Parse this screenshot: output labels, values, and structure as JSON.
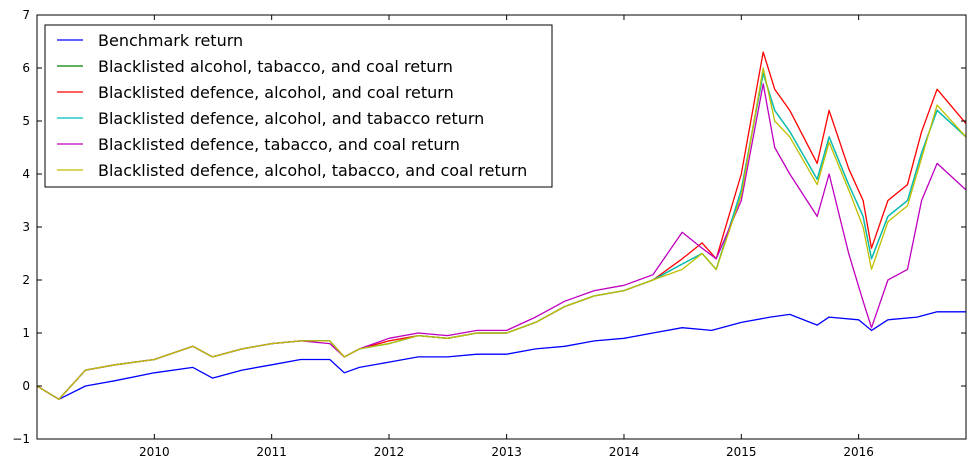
{
  "chart_data": {
    "type": "line",
    "title": "",
    "xlabel": "",
    "ylabel": "",
    "x_range": [
      "2009-01-01",
      "2016-11-30"
    ],
    "x_ticks": [
      "2010",
      "2011",
      "2012",
      "2013",
      "2014",
      "2015",
      "2016"
    ],
    "ylim": [
      -1,
      7
    ],
    "y_ticks": [
      "−1",
      "0",
      "1",
      "2",
      "3",
      "4",
      "5",
      "6",
      "7"
    ],
    "grid": false,
    "legend_position": "top-left",
    "series": [
      {
        "name": "Benchmark return",
        "color": "#0000ff",
        "x": [
          "2009-01-01",
          "2009-03-10",
          "2009-06-01",
          "2009-09-01",
          "2010-01-01",
          "2010-05-01",
          "2010-07-01",
          "2010-10-01",
          "2011-01-01",
          "2011-04-01",
          "2011-07-01",
          "2011-08-15",
          "2011-10-01",
          "2012-01-01",
          "2012-04-01",
          "2012-07-01",
          "2012-10-01",
          "2013-01-01",
          "2013-04-01",
          "2013-07-01",
          "2013-10-01",
          "2014-01-01",
          "2014-04-01",
          "2014-07-01",
          "2014-10-01",
          "2015-01-01",
          "2015-04-01",
          "2015-06-01",
          "2015-08-25",
          "2015-10-01",
          "2016-01-01",
          "2016-02-10",
          "2016-04-01",
          "2016-07-01",
          "2016-09-01",
          "2016-11-30"
        ],
        "y": [
          0.0,
          -0.25,
          0.0,
          0.1,
          0.25,
          0.35,
          0.15,
          0.3,
          0.4,
          0.5,
          0.5,
          0.25,
          0.35,
          0.45,
          0.55,
          0.55,
          0.6,
          0.6,
          0.7,
          0.75,
          0.85,
          0.9,
          1.0,
          1.1,
          1.05,
          1.2,
          1.3,
          1.35,
          1.15,
          1.3,
          1.25,
          1.05,
          1.25,
          1.3,
          1.4,
          1.4
        ]
      },
      {
        "name": "Blacklisted alcohol, tabacco, and coal return",
        "color": "#008000",
        "x": [
          "2009-01-01",
          "2009-03-10",
          "2009-06-01",
          "2009-09-01",
          "2010-01-01",
          "2010-05-01",
          "2010-07-01",
          "2010-10-01",
          "2011-01-01",
          "2011-04-01",
          "2011-07-01",
          "2011-08-15",
          "2011-10-01",
          "2012-01-01",
          "2012-04-01",
          "2012-07-01",
          "2012-10-01",
          "2013-01-01",
          "2013-04-01",
          "2013-07-01",
          "2013-10-01",
          "2014-01-01",
          "2014-04-01",
          "2014-07-01",
          "2014-09-01",
          "2014-10-15",
          "2015-01-01",
          "2015-03-10",
          "2015-04-15",
          "2015-06-01",
          "2015-08-25",
          "2015-10-01",
          "2015-12-01",
          "2016-01-15",
          "2016-02-10",
          "2016-04-01",
          "2016-06-01",
          "2016-07-15",
          "2016-09-01",
          "2016-11-30"
        ],
        "y": [
          0.0,
          -0.25,
          0.3,
          0.4,
          0.5,
          0.75,
          0.55,
          0.7,
          0.8,
          0.85,
          0.85,
          0.55,
          0.7,
          0.8,
          0.95,
          0.9,
          1.0,
          1.0,
          1.2,
          1.5,
          1.7,
          1.8,
          2.0,
          2.3,
          2.5,
          2.2,
          3.7,
          5.9,
          5.2,
          4.8,
          3.9,
          4.7,
          3.8,
          3.2,
          2.4,
          3.2,
          3.5,
          4.4,
          5.2,
          4.7
        ]
      },
      {
        "name": "Blacklisted defence, alcohol, and coal return",
        "color": "#ff0000",
        "x": [
          "2009-01-01",
          "2009-03-10",
          "2009-06-01",
          "2009-09-01",
          "2010-01-01",
          "2010-05-01",
          "2010-07-01",
          "2010-10-01",
          "2011-01-01",
          "2011-04-01",
          "2011-07-01",
          "2011-08-15",
          "2011-10-01",
          "2012-01-01",
          "2012-04-01",
          "2012-07-01",
          "2012-10-01",
          "2013-01-01",
          "2013-04-01",
          "2013-07-01",
          "2013-10-01",
          "2014-01-01",
          "2014-04-01",
          "2014-07-01",
          "2014-09-01",
          "2014-10-15",
          "2015-01-01",
          "2015-03-10",
          "2015-04-15",
          "2015-06-01",
          "2015-08-25",
          "2015-10-01",
          "2015-12-01",
          "2016-01-15",
          "2016-02-10",
          "2016-04-01",
          "2016-06-01",
          "2016-07-15",
          "2016-09-01",
          "2016-11-30"
        ],
        "y": [
          0.0,
          -0.25,
          0.3,
          0.4,
          0.5,
          0.75,
          0.55,
          0.7,
          0.8,
          0.85,
          0.85,
          0.55,
          0.7,
          0.85,
          0.95,
          0.9,
          1.0,
          1.0,
          1.2,
          1.5,
          1.7,
          1.8,
          2.0,
          2.4,
          2.7,
          2.4,
          4.0,
          6.3,
          5.6,
          5.2,
          4.2,
          5.2,
          4.1,
          3.5,
          2.6,
          3.5,
          3.8,
          4.8,
          5.6,
          4.95
        ]
      },
      {
        "name": "Blacklisted defence, alcohol, and tabacco return",
        "color": "#00bfbf",
        "x": [
          "2009-01-01",
          "2009-03-10",
          "2009-06-01",
          "2009-09-01",
          "2010-01-01",
          "2010-05-01",
          "2010-07-01",
          "2010-10-01",
          "2011-01-01",
          "2011-04-01",
          "2011-07-01",
          "2011-08-15",
          "2011-10-01",
          "2012-01-01",
          "2012-04-01",
          "2012-07-01",
          "2012-10-01",
          "2013-01-01",
          "2013-04-01",
          "2013-07-01",
          "2013-10-01",
          "2014-01-01",
          "2014-04-01",
          "2014-07-01",
          "2014-09-01",
          "2014-10-15",
          "2015-01-01",
          "2015-03-10",
          "2015-04-15",
          "2015-06-01",
          "2015-08-25",
          "2015-10-01",
          "2015-12-01",
          "2016-01-15",
          "2016-02-10",
          "2016-04-01",
          "2016-06-01",
          "2016-07-15",
          "2016-09-01",
          "2016-11-30"
        ],
        "y": [
          0.0,
          -0.25,
          0.3,
          0.4,
          0.5,
          0.75,
          0.55,
          0.7,
          0.8,
          0.85,
          0.85,
          0.55,
          0.7,
          0.8,
          0.95,
          0.9,
          1.0,
          1.0,
          1.2,
          1.5,
          1.7,
          1.8,
          2.0,
          2.3,
          2.5,
          2.2,
          3.7,
          5.9,
          5.2,
          4.8,
          3.9,
          4.7,
          3.8,
          3.2,
          2.4,
          3.2,
          3.5,
          4.4,
          5.2,
          4.7
        ]
      },
      {
        "name": "Blacklisted defence, tabacco, and coal return",
        "color": "#bf00bf",
        "x": [
          "2009-01-01",
          "2009-03-10",
          "2009-06-01",
          "2009-09-01",
          "2010-01-01",
          "2010-05-01",
          "2010-07-01",
          "2010-10-01",
          "2011-01-01",
          "2011-04-01",
          "2011-07-01",
          "2011-08-15",
          "2011-10-01",
          "2012-01-01",
          "2012-04-01",
          "2012-07-01",
          "2012-10-01",
          "2013-01-01",
          "2013-04-01",
          "2013-07-01",
          "2013-10-01",
          "2014-01-01",
          "2014-04-01",
          "2014-07-01",
          "2014-09-01",
          "2014-10-15",
          "2015-01-01",
          "2015-03-10",
          "2015-04-15",
          "2015-06-01",
          "2015-08-25",
          "2015-10-01",
          "2015-12-01",
          "2016-01-15",
          "2016-02-10",
          "2016-04-01",
          "2016-06-01",
          "2016-07-15",
          "2016-09-01",
          "2016-11-30"
        ],
        "y": [
          0.0,
          -0.25,
          0.3,
          0.4,
          0.5,
          0.75,
          0.55,
          0.7,
          0.8,
          0.85,
          0.8,
          0.55,
          0.7,
          0.9,
          1.0,
          0.95,
          1.05,
          1.05,
          1.3,
          1.6,
          1.8,
          1.9,
          2.1,
          2.9,
          2.6,
          2.4,
          3.5,
          5.7,
          4.5,
          4.0,
          3.2,
          4.0,
          2.5,
          1.6,
          1.1,
          2.0,
          2.2,
          3.5,
          4.2,
          3.7
        ]
      },
      {
        "name": "Blacklisted defence, alcohol, tabacco, and coal return",
        "color": "#bfbf00",
        "x": [
          "2009-01-01",
          "2009-03-10",
          "2009-06-01",
          "2009-09-01",
          "2010-01-01",
          "2010-05-01",
          "2010-07-01",
          "2010-10-01",
          "2011-01-01",
          "2011-04-01",
          "2011-07-01",
          "2011-08-15",
          "2011-10-01",
          "2012-01-01",
          "2012-04-01",
          "2012-07-01",
          "2012-10-01",
          "2013-01-01",
          "2013-04-01",
          "2013-07-01",
          "2013-10-01",
          "2014-01-01",
          "2014-04-01",
          "2014-07-01",
          "2014-09-01",
          "2014-10-15",
          "2015-01-01",
          "2015-03-10",
          "2015-04-15",
          "2015-06-01",
          "2015-08-25",
          "2015-10-01",
          "2015-12-01",
          "2016-01-15",
          "2016-02-10",
          "2016-04-01",
          "2016-06-01",
          "2016-07-15",
          "2016-09-01",
          "2016-11-30"
        ],
        "y": [
          0.0,
          -0.25,
          0.3,
          0.4,
          0.5,
          0.75,
          0.55,
          0.7,
          0.8,
          0.85,
          0.85,
          0.55,
          0.7,
          0.8,
          0.95,
          0.9,
          1.0,
          1.0,
          1.2,
          1.5,
          1.7,
          1.8,
          2.0,
          2.2,
          2.5,
          2.2,
          3.6,
          6.0,
          5.0,
          4.7,
          3.8,
          4.6,
          3.7,
          3.0,
          2.2,
          3.1,
          3.4,
          4.3,
          5.3,
          4.7
        ]
      }
    ]
  }
}
